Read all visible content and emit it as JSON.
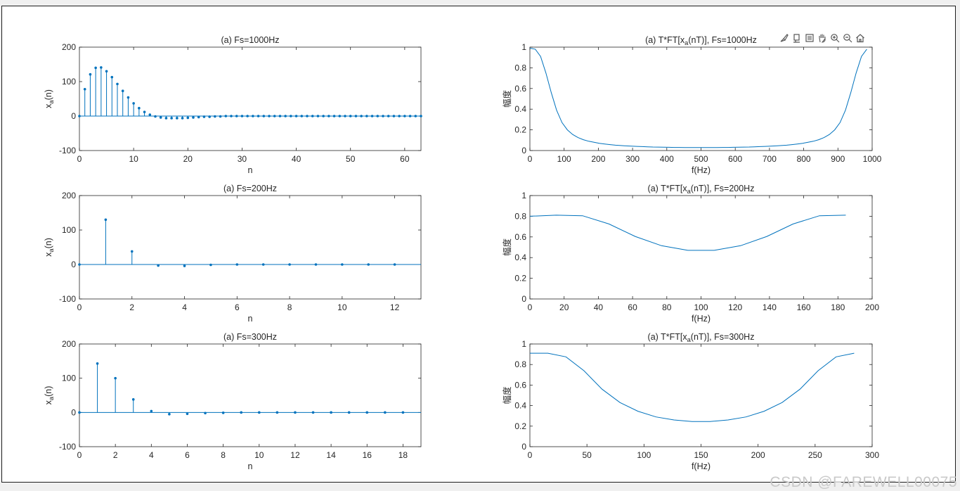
{
  "colors": {
    "line": "#0072BD",
    "axis": "#262626",
    "text": "#262626"
  },
  "watermark": "CSDN @FAREWELL00075",
  "toolbar": {
    "icons": [
      "brush-icon",
      "data-tips-icon",
      "restore-view-icon",
      "pan-icon",
      "zoom-in-icon",
      "zoom-out-icon",
      "home-icon"
    ]
  },
  "chart_data": [
    {
      "id": "stem1",
      "type": "stem",
      "title": "(a) Fs=1000Hz",
      "ylabel": "x_a(n)",
      "xlabel": "n",
      "xlim": [
        0,
        63
      ],
      "ylim": [
        -100,
        200
      ],
      "xticks": [
        0,
        10,
        20,
        30,
        40,
        50,
        60
      ],
      "yticks": [
        -100,
        0,
        100,
        200
      ],
      "x": [
        0,
        1,
        2,
        3,
        4,
        5,
        6,
        7,
        8,
        9,
        10,
        11,
        12,
        13,
        14,
        15,
        16,
        17,
        18,
        19,
        20,
        21,
        22,
        23,
        24,
        25,
        26,
        27,
        28,
        29,
        30,
        31,
        32,
        33,
        34,
        35,
        36,
        37,
        38,
        39,
        40,
        41,
        42,
        43,
        44,
        45,
        46,
        47,
        48,
        49,
        50,
        51,
        52,
        53,
        54,
        55,
        56,
        57,
        58,
        59,
        60,
        61,
        62,
        63
      ],
      "y": [
        0,
        78,
        121,
        140,
        141,
        130,
        113,
        93,
        73,
        54,
        37,
        23,
        12,
        4,
        -1,
        -4,
        -6,
        -6,
        -6,
        -6,
        -5,
        -4,
        -3,
        -2,
        -2,
        -1,
        -1,
        0,
        0,
        0,
        0,
        0,
        0,
        0,
        0,
        0,
        0,
        0,
        0,
        0,
        0,
        0,
        0,
        0,
        0,
        0,
        0,
        0,
        0,
        0,
        0,
        0,
        0,
        0,
        0,
        0,
        0,
        0,
        0,
        0,
        0,
        0,
        0,
        0
      ]
    },
    {
      "id": "line1",
      "type": "line",
      "title": "(a) T*FT[x_a(nT)], Fs=1000Hz",
      "ylabel": "幅度",
      "xlabel": "f(Hz)",
      "xlim": [
        0,
        1000
      ],
      "ylim": [
        0,
        1
      ],
      "xticks": [
        0,
        100,
        200,
        300,
        400,
        500,
        600,
        700,
        800,
        900,
        1000
      ],
      "yticks": [
        0,
        0.2,
        0.4,
        0.6,
        0.8,
        1
      ],
      "x": [
        0,
        15.6,
        31.2,
        46.9,
        62.5,
        78.1,
        93.8,
        109.4,
        125,
        140.6,
        156.2,
        171.9,
        187.5,
        203.1,
        218.8,
        234.4,
        250,
        265.6,
        281.2,
        296.9,
        312.5,
        328.1,
        343.8,
        359.4,
        375,
        390.6,
        406.2,
        421.9,
        437.5,
        453.1,
        468.8,
        484.4,
        500,
        515.6,
        531.2,
        546.9,
        562.5,
        578.1,
        593.8,
        609.4,
        625,
        640.6,
        656.2,
        671.9,
        687.5,
        703.1,
        718.8,
        734.4,
        750,
        765.6,
        781.2,
        796.9,
        812.5,
        828.1,
        843.8,
        859.4,
        875,
        890.6,
        906.2,
        921.9,
        937.5,
        953.1,
        968.8,
        984.4
      ],
      "y": [
        0.99,
        0.98,
        0.91,
        0.75,
        0.56,
        0.39,
        0.27,
        0.2,
        0.155,
        0.125,
        0.105,
        0.09,
        0.08,
        0.07,
        0.063,
        0.057,
        0.052,
        0.048,
        0.045,
        0.042,
        0.04,
        0.038,
        0.036,
        0.034,
        0.033,
        0.032,
        0.031,
        0.03,
        0.03,
        0.029,
        0.029,
        0.029,
        0.029,
        0.029,
        0.029,
        0.029,
        0.03,
        0.03,
        0.031,
        0.032,
        0.033,
        0.034,
        0.036,
        0.038,
        0.04,
        0.042,
        0.045,
        0.048,
        0.052,
        0.057,
        0.063,
        0.07,
        0.08,
        0.09,
        0.105,
        0.125,
        0.155,
        0.2,
        0.27,
        0.39,
        0.56,
        0.75,
        0.91,
        0.98
      ]
    },
    {
      "id": "stem2",
      "type": "stem",
      "title": "(a) Fs=200Hz",
      "ylabel": "x_a(n)",
      "xlabel": "n",
      "xlim": [
        0,
        13
      ],
      "ylim": [
        -100,
        200
      ],
      "xticks": [
        0,
        2,
        4,
        6,
        8,
        10,
        12
      ],
      "yticks": [
        -100,
        0,
        100,
        200
      ],
      "x": [
        0,
        1,
        2,
        3,
        4,
        5,
        6,
        7,
        8,
        9,
        10,
        11,
        12
      ],
      "y": [
        0,
        130,
        38,
        -3,
        -4,
        -1,
        0,
        0,
        0,
        0,
        0,
        0,
        0
      ]
    },
    {
      "id": "line2",
      "type": "line",
      "title": "(a) T*FT[x_a(nT)], Fs=200Hz",
      "ylabel": "幅度",
      "xlabel": "f(Hz)",
      "xlim": [
        0,
        200
      ],
      "ylim": [
        0,
        1
      ],
      "xticks": [
        0,
        20,
        40,
        60,
        80,
        100,
        120,
        140,
        160,
        180,
        200
      ],
      "yticks": [
        0,
        0.2,
        0.4,
        0.6,
        0.8,
        1
      ],
      "x": [
        0,
        15.4,
        30.8,
        46.2,
        61.5,
        76.9,
        92.3,
        107.7,
        123.1,
        138.5,
        153.8,
        169.2,
        184.6
      ],
      "y": [
        0.8,
        0.81,
        0.805,
        0.725,
        0.605,
        0.515,
        0.47,
        0.47,
        0.515,
        0.605,
        0.725,
        0.805,
        0.81
      ]
    },
    {
      "id": "stem3",
      "type": "stem",
      "title": "(a) Fs=300Hz",
      "ylabel": "x_a(n)",
      "xlabel": "n",
      "xlim": [
        0,
        19
      ],
      "ylim": [
        -100,
        200
      ],
      "xticks": [
        0,
        2,
        4,
        6,
        8,
        10,
        12,
        14,
        16,
        18
      ],
      "yticks": [
        -100,
        0,
        100,
        200
      ],
      "x": [
        0,
        1,
        2,
        3,
        4,
        5,
        6,
        7,
        8,
        9,
        10,
        11,
        12,
        13,
        14,
        15,
        16,
        17,
        18
      ],
      "y": [
        0,
        143,
        100,
        38,
        4,
        -5,
        -4,
        -2,
        -1,
        0,
        0,
        0,
        0,
        0,
        0,
        0,
        0,
        0,
        0
      ]
    },
    {
      "id": "line3",
      "type": "line",
      "title": "(a) T*FT[x_a(nT)], Fs=300Hz",
      "ylabel": "幅度",
      "xlabel": "f(Hz)",
      "xlim": [
        0,
        300
      ],
      "ylim": [
        0,
        1
      ],
      "xticks": [
        0,
        50,
        100,
        150,
        200,
        250,
        300
      ],
      "yticks": [
        0,
        0.2,
        0.4,
        0.6,
        0.8,
        1
      ],
      "x": [
        0,
        15.8,
        31.6,
        47.4,
        63.2,
        78.9,
        94.7,
        110.5,
        126.3,
        142.1,
        157.9,
        173.7,
        189.5,
        205.3,
        221.1,
        236.8,
        252.6,
        268.4,
        284.2
      ],
      "y": [
        0.91,
        0.91,
        0.875,
        0.74,
        0.56,
        0.43,
        0.345,
        0.29,
        0.26,
        0.245,
        0.245,
        0.26,
        0.29,
        0.345,
        0.43,
        0.56,
        0.74,
        0.875,
        0.91
      ]
    }
  ]
}
